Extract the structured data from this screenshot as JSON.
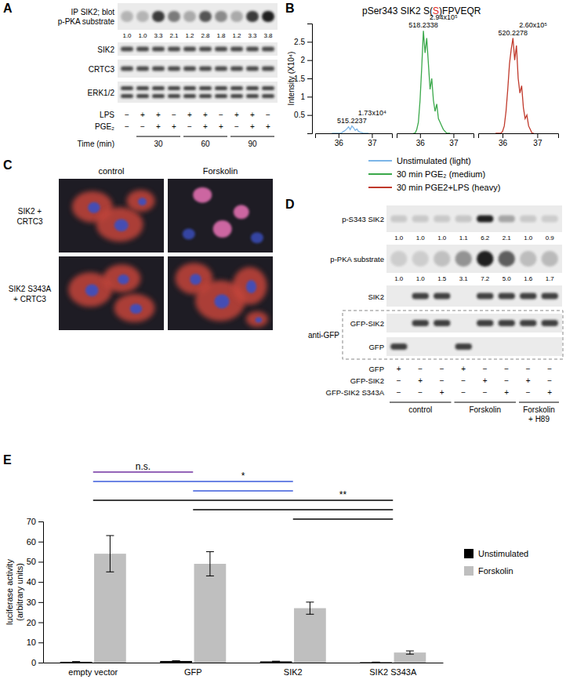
{
  "panel_a": {
    "label": "A",
    "rows": [
      {
        "label": [
          "IP SIK2; blot",
          "p-PKA substrate"
        ],
        "quant": [
          1.0,
          1.0,
          3.3,
          2.1,
          1.2,
          2.8,
          1.8,
          1.2,
          3.3,
          3.8
        ],
        "quant_labels": [
          "1.0",
          "1.0",
          "3.3",
          "2.1",
          "1.2",
          "2.8",
          "1.8",
          "1.2",
          "3.3",
          "3.8"
        ]
      },
      {
        "label": [
          "SIK2"
        ]
      },
      {
        "label": [
          "CRTC3"
        ]
      },
      {
        "label": [
          "ERK1/2"
        ]
      }
    ],
    "treatments": [
      {
        "label": "LPS",
        "signs": [
          "−",
          "+",
          "+",
          "−",
          "+",
          "+",
          "−",
          "+",
          "+",
          "−"
        ]
      },
      {
        "label": "PGE₂",
        "signs": [
          "−",
          "−",
          "+",
          "+",
          "−",
          "+",
          "+",
          "−",
          "+",
          "+"
        ]
      }
    ],
    "time_label": "Time (min)",
    "time_groups": [
      {
        "label": "30",
        "first": 1,
        "last": 3
      },
      {
        "label": "60",
        "first": 4,
        "last": 6
      },
      {
        "label": "90",
        "first": 7,
        "last": 9
      }
    ]
  },
  "panel_c": {
    "label": "C",
    "columns": [
      "control",
      "Forskolin"
    ],
    "rows": [
      [
        "SIK2 +",
        "CRTC3"
      ],
      [
        "SIK2 S343A",
        "+ CRTC3"
      ]
    ]
  },
  "panel_d": {
    "label": "D",
    "rows": [
      {
        "label": "p-S343 SIK2",
        "quant": [
          1.0,
          1.0,
          1.0,
          1.1,
          6.2,
          2.1,
          1.0,
          0.9
        ],
        "quant_labels": [
          "1.0",
          "1.0",
          "1.0",
          "1.1",
          "6.2",
          "2.1",
          "1.0",
          "0.9"
        ]
      },
      {
        "label": "p-PKA substrate",
        "quant": [
          1.0,
          1.0,
          1.5,
          3.1,
          7.2,
          5.0,
          1.6,
          1.7
        ],
        "quant_labels": [
          "1.0",
          "1.0",
          "1.5",
          "3.1",
          "7.2",
          "5.0",
          "1.6",
          "1.7"
        ]
      },
      {
        "label": "SIK2"
      },
      {
        "label": "GFP-SIK2"
      },
      {
        "label": "GFP"
      }
    ],
    "box_label": "anti-GFP",
    "constructs": [
      {
        "label": "GFP",
        "signs": [
          "+",
          "−",
          "−",
          "+",
          "−",
          "−",
          "−",
          "−"
        ]
      },
      {
        "label": "GFP-SIK2",
        "signs": [
          "−",
          "+",
          "−",
          "−",
          "+",
          "−",
          "+",
          "−"
        ]
      },
      {
        "label": "GFP-SIK2 S343A",
        "signs": [
          "−",
          "−",
          "+",
          "−",
          "−",
          "+",
          "−",
          "+"
        ]
      }
    ],
    "groups": [
      {
        "label": [
          "control"
        ],
        "first": 0,
        "last": 2
      },
      {
        "label": [
          "Forskolin"
        ],
        "first": 3,
        "last": 5
      },
      {
        "label": [
          "Forskolin",
          "+ H89"
        ],
        "first": 6,
        "last": 7
      }
    ]
  },
  "chart_data": [
    {
      "type": "line",
      "panel_label": "B",
      "title_parts": [
        {
          "text": "pSer343 SIK2 S("
        },
        {
          "text": "S",
          "color": "#e0261c"
        },
        {
          "text": ")FPVEQR"
        }
      ],
      "y_label": "Intensity (X10⁴)",
      "x": [
        35.8,
        35.85,
        35.9,
        35.95,
        36.0,
        36.05,
        36.1,
        36.15,
        36.2,
        36.25,
        36.3,
        36.35,
        36.4,
        36.45,
        36.5,
        36.55,
        36.6,
        36.65,
        36.7,
        36.75,
        36.8,
        36.85,
        36.9
      ],
      "xlim": [
        35.3,
        37.6
      ],
      "xticks": [
        36,
        37
      ],
      "ylim": [
        0,
        3
      ],
      "yticks": [
        0.5,
        1,
        1.5,
        2,
        2.5
      ],
      "legend": "bottom",
      "series": [
        {
          "name": "Unstimulated (light)",
          "color": "#7cb5e8",
          "values": [
            0,
            0,
            0,
            0,
            0,
            0,
            0.02,
            0.05,
            0.08,
            0.12,
            0.18,
            0.1,
            0.2,
            0.15,
            0.08,
            0.12,
            0.05,
            0.03,
            0.02,
            0,
            0,
            0,
            0
          ],
          "mz": "515.2237",
          "area": "1.73x10⁴"
        },
        {
          "name": "30 min PGE₂ (medium)",
          "color": "#3aa84a",
          "values": [
            0,
            0,
            0.1,
            0.3,
            0.9,
            1.8,
            2.8,
            2.2,
            2.6,
            1.9,
            1.2,
            1.5,
            0.9,
            0.6,
            0.8,
            0.4,
            0.3,
            0.2,
            0.1,
            0.05,
            0,
            0,
            0
          ],
          "mz": "518.2338",
          "area": "2.94x10⁵"
        },
        {
          "name": "30 min PGE2+LPS (heavy)",
          "color": "#c0392b",
          "values": [
            0,
            0,
            0,
            0,
            0.05,
            0.2,
            0.6,
            1.2,
            1.9,
            2.3,
            2.6,
            2.0,
            2.4,
            1.5,
            1.1,
            1.3,
            0.7,
            0.4,
            0.5,
            0.2,
            0.1,
            0,
            0
          ],
          "mz": "520.2278",
          "area": "2.60x10⁵"
        }
      ]
    },
    {
      "type": "bar",
      "panel_label": "E",
      "categories": [
        "empty vector",
        "GFP",
        "SIK2",
        "SIK2 S343A"
      ],
      "series": [
        {
          "name": "Unstimulated",
          "color": "#000000",
          "values": [
            0.4,
            0.8,
            0.6,
            0.2
          ],
          "errors": [
            0.1,
            0.1,
            0.1,
            0.05
          ]
        },
        {
          "name": "Forskolin",
          "color": "#bfbfbf",
          "values": [
            54,
            49,
            27,
            5
          ],
          "errors": [
            9,
            6,
            3,
            0.8
          ]
        }
      ],
      "ylim": [
        0,
        70
      ],
      "yticks": [
        0,
        10,
        20,
        30,
        40,
        50,
        60,
        70
      ],
      "y_label": [
        "luciferase activity",
        "(arbitrary units)"
      ],
      "legend": "right",
      "significance": [
        {
          "label": "n.s.",
          "color": "#7030a0",
          "pairs": [
            [
              0,
              1
            ]
          ]
        },
        {
          "label": "*",
          "color": "#3b5bdb",
          "pairs": [
            [
              0,
              2
            ],
            [
              1,
              2
            ]
          ]
        },
        {
          "label": "**",
          "color": "#000000",
          "pairs": [
            [
              0,
              3
            ],
            [
              1,
              3
            ],
            [
              2,
              3
            ]
          ]
        }
      ]
    }
  ]
}
